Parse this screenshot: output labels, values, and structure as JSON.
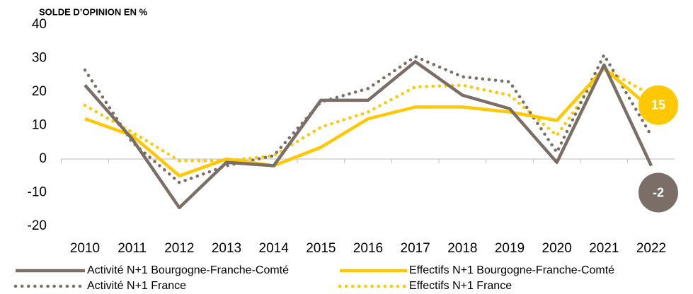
{
  "chart_data": {
    "type": "line",
    "title": "SOLDE D’OPINION EN %",
    "x": [
      2010,
      2011,
      2012,
      2013,
      2014,
      2015,
      2016,
      2017,
      2018,
      2019,
      2020,
      2021,
      2022
    ],
    "series": [
      {
        "name": "Activité N+1 Bourgogne-Franche-Comté",
        "color": "#7a6e66",
        "style": "solid",
        "values": [
          22,
          6,
          -14.5,
          -1,
          -2,
          17.5,
          17.5,
          29,
          19,
          15,
          -1,
          28,
          -2
        ]
      },
      {
        "name": "Effectifs N+1 Bourgogne-Franche-Comté",
        "color": "#ffc800",
        "style": "solid",
        "values": [
          12,
          7,
          -5,
          0,
          -2,
          3.5,
          12,
          15.5,
          15.5,
          14,
          11.5,
          27,
          15
        ]
      },
      {
        "name": "Activité N+1 France",
        "color": "#7a6e66",
        "style": "dotted",
        "values": [
          26.5,
          5,
          -7,
          -2,
          1,
          17,
          21,
          30.5,
          24.5,
          23,
          2,
          31,
          7
        ]
      },
      {
        "name": "Effectifs N+1 France",
        "color": "#ffc800",
        "style": "dotted",
        "values": [
          16,
          8,
          -0.5,
          -0.5,
          1,
          9.5,
          14,
          21.5,
          22,
          19,
          7,
          27,
          19
        ]
      }
    ],
    "ylim": [
      -20,
      40
    ],
    "yticks": [
      -20,
      -10,
      0,
      10,
      20,
      30,
      40
    ],
    "xlim": [
      2010,
      2022
    ],
    "grid": false
  }
}
